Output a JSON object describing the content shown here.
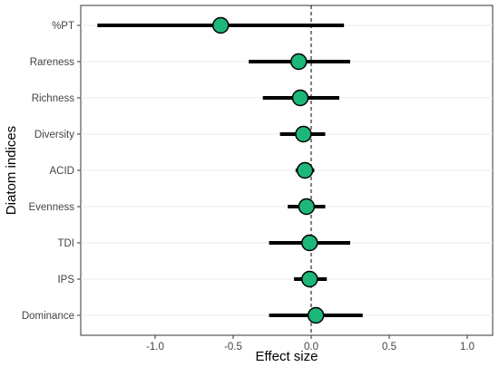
{
  "chart_data": {
    "type": "scatter",
    "xlabel": "Effect size",
    "ylabel": "Diatom indices",
    "xlim": [
      -1.5,
      1.15
    ],
    "x_ticks": [
      -1.0,
      -0.5,
      0.0,
      0.5,
      1.0
    ],
    "x_tick_labels": [
      "-1.0",
      "-0.5",
      "0.0",
      "0.5",
      "1.0"
    ],
    "reference_line": 0,
    "grid": "horizontal",
    "colors": {
      "point_fill": "#1db77a",
      "point_stroke": "#000000",
      "interval": "#000000"
    },
    "categories": [
      "%PT",
      "Rareness",
      "Richness",
      "Diversity",
      "ACID",
      "Evenness",
      "TDI",
      "IPS",
      "Dominance"
    ],
    "estimates": [
      -0.58,
      -0.08,
      -0.07,
      -0.05,
      -0.04,
      -0.03,
      -0.01,
      -0.01,
      0.03
    ],
    "lower": [
      -1.37,
      -0.4,
      -0.31,
      -0.2,
      -0.1,
      -0.15,
      -0.27,
      -0.11,
      -0.27
    ],
    "upper": [
      0.21,
      0.25,
      0.18,
      0.09,
      0.02,
      0.09,
      0.25,
      0.1,
      0.33
    ]
  }
}
